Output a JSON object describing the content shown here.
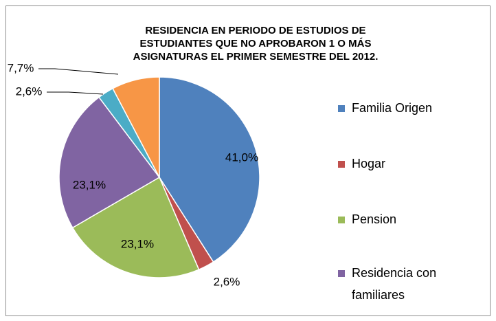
{
  "chart_data": {
    "type": "pie",
    "title": [
      "RESIDENCIA EN PERIODO DE ESTUDIOS DE",
      "ESTUDIANTES QUE NO APROBARON 1 O MÁS",
      "ASIGNATURAS EL PRIMER SEMESTRE DEL 2012."
    ],
    "categories": [
      "Familia Origen",
      "Hogar",
      "Pension",
      "Residencia con familiares",
      null,
      null
    ],
    "values": [
      41.0,
      2.6,
      23.1,
      23.1,
      2.6,
      7.7
    ],
    "value_labels": [
      "41,0%",
      "2,6%",
      "23,1%",
      "23,1%",
      "2,6%",
      "7,7%"
    ],
    "colors": [
      "#4f81bd",
      "#c0504d",
      "#9bbb59",
      "#8064a2",
      "#4bacc6",
      "#f79646"
    ],
    "legend": "right"
  }
}
